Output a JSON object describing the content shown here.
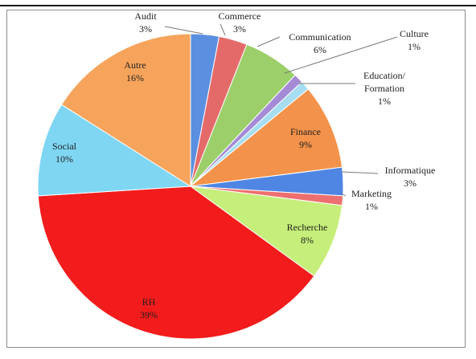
{
  "chart_data": {
    "type": "pie",
    "title": "",
    "slices": [
      {
        "label": "Audit",
        "pct_text": "3%",
        "value": 3,
        "color": "#5b8fe0"
      },
      {
        "label": "Commerce",
        "pct_text": "3%",
        "value": 3,
        "color": "#e46a6a"
      },
      {
        "label": "Communication",
        "pct_text": "6%",
        "value": 6,
        "color": "#9ccf6a"
      },
      {
        "label": "Culture",
        "pct_text": "1%",
        "value": 1,
        "color": "#a58bd6"
      },
      {
        "label": "Education/Formation",
        "label_lines": [
          "Education/",
          "Formation"
        ],
        "pct_text": "1%",
        "value": 1,
        "color": "#a6ddf0"
      },
      {
        "label": "Finance",
        "pct_text": "9%",
        "value": 9,
        "color": "#f3924a"
      },
      {
        "label": "Informatique",
        "pct_text": "3%",
        "value": 3,
        "color": "#4f86e3"
      },
      {
        "label": "Marketing",
        "pct_text": "1%",
        "value": 1,
        "color": "#ee6f6f"
      },
      {
        "label": "Recherche",
        "pct_text": "8%",
        "value": 8,
        "color": "#c6ee7a"
      },
      {
        "label": "RH",
        "pct_text": "39%",
        "value": 39,
        "color": "#f21c1c"
      },
      {
        "label": "Social",
        "pct_text": "10%",
        "value": 10,
        "color": "#7fd6f2"
      },
      {
        "label": "Autre",
        "pct_text": "16%",
        "value": 16,
        "color": "#f6a45c"
      }
    ]
  }
}
